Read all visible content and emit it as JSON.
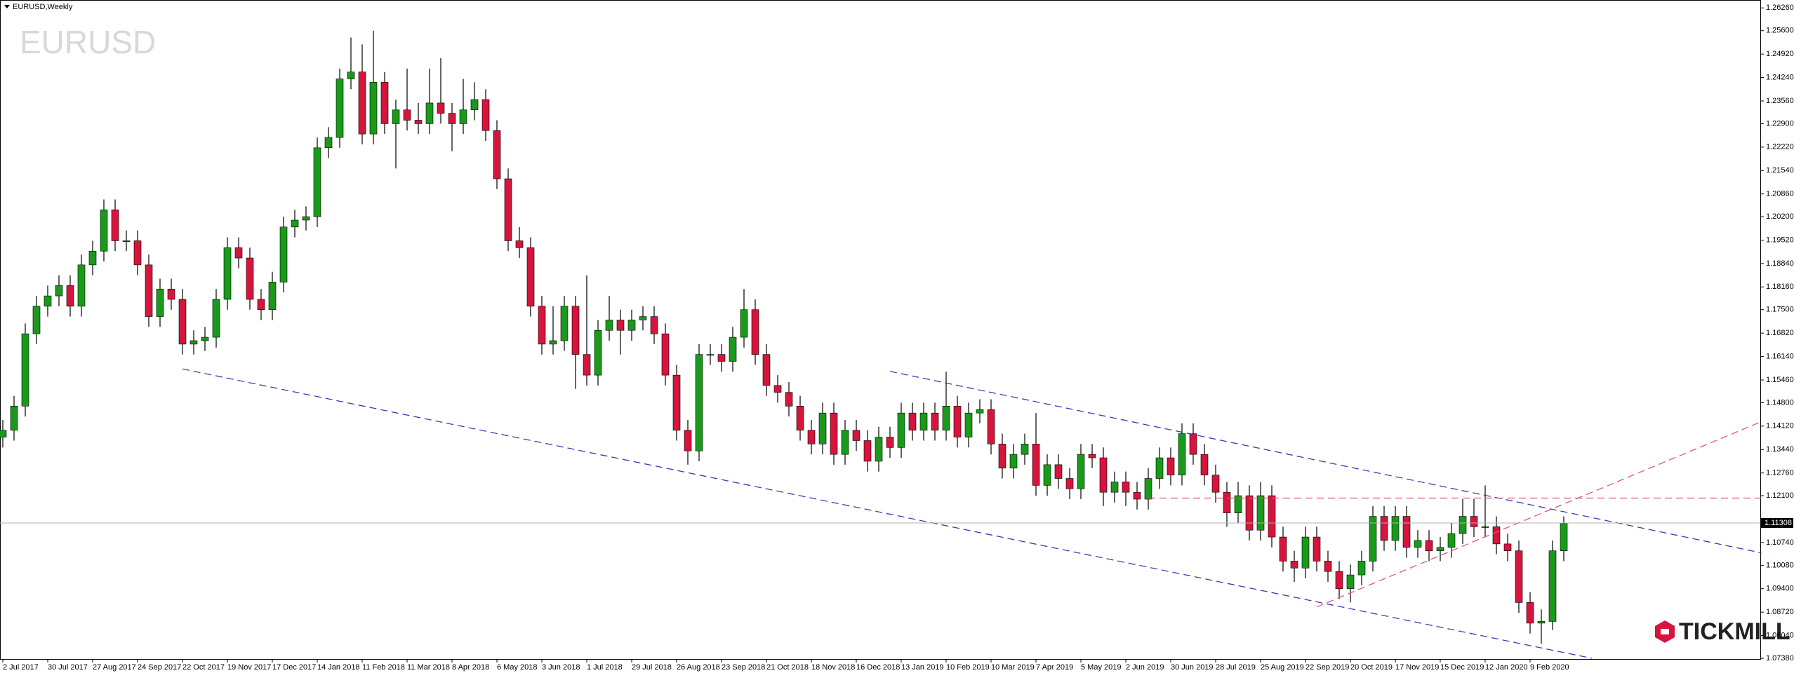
{
  "chart_data": {
    "type": "candlestick",
    "title": "EURUSD",
    "subtitle": "EURUSD,Weekly",
    "logo": "TICKMILL",
    "up_color": "#1a9a1a",
    "down_color": "#d6143c",
    "ylim": [
      1.0736,
      1.2649
    ],
    "yticks": [
      {
        "value": 1.2626,
        "label": "1.26260"
      },
      {
        "value": 1.256,
        "label": "1.25600"
      },
      {
        "value": 1.2492,
        "label": "1.24920"
      },
      {
        "value": 1.2424,
        "label": "1.24240"
      },
      {
        "value": 1.2356,
        "label": "1.23560"
      },
      {
        "value": 1.229,
        "label": "1.22900"
      },
      {
        "value": 1.2222,
        "label": "1.22220"
      },
      {
        "value": 1.2154,
        "label": "1.21540"
      },
      {
        "value": 1.2086,
        "label": "1.20860"
      },
      {
        "value": 1.202,
        "label": "1.20200"
      },
      {
        "value": 1.1952,
        "label": "1.19520"
      },
      {
        "value": 1.1884,
        "label": "1.18840"
      },
      {
        "value": 1.1816,
        "label": "1.18160"
      },
      {
        "value": 1.175,
        "label": "1.17500"
      },
      {
        "value": 1.1682,
        "label": "1.16820"
      },
      {
        "value": 1.1614,
        "label": "1.16140"
      },
      {
        "value": 1.1546,
        "label": "1.15460"
      },
      {
        "value": 1.148,
        "label": "1.14800"
      },
      {
        "value": 1.1412,
        "label": "1.14120"
      },
      {
        "value": 1.1344,
        "label": "1.13440"
      },
      {
        "value": 1.1276,
        "label": "1.12760"
      },
      {
        "value": 1.121,
        "label": "1.12100"
      },
      {
        "value": 1.1074,
        "label": "1.10740"
      },
      {
        "value": 1.1008,
        "label": "1.10080"
      },
      {
        "value": 1.094,
        "label": "1.09400"
      },
      {
        "value": 1.0872,
        "label": "1.08720"
      },
      {
        "value": 1.0804,
        "label": "1.08040"
      },
      {
        "value": 1.0738,
        "label": "1.07380"
      }
    ],
    "last_price": {
      "value": 1.11308,
      "label": "1.11308"
    },
    "xticks": [
      {
        "value": 0,
        "label": "2 Jul 2017"
      },
      {
        "value": 4,
        "label": "30 Jul 2017"
      },
      {
        "value": 8,
        "label": "27 Aug 2017"
      },
      {
        "value": 12,
        "label": "24 Sep 2017"
      },
      {
        "value": 16,
        "label": "22 Oct 2017"
      },
      {
        "value": 20,
        "label": "19 Nov 2017"
      },
      {
        "value": 24,
        "label": "17 Dec 2017"
      },
      {
        "value": 28,
        "label": "14 Jan 2018"
      },
      {
        "value": 32,
        "label": "11 Feb 2018"
      },
      {
        "value": 36,
        "label": "11 Mar 2018"
      },
      {
        "value": 40,
        "label": "8 Apr 2018"
      },
      {
        "value": 44,
        "label": "6 May 2018"
      },
      {
        "value": 48,
        "label": "3 Jun 2018"
      },
      {
        "value": 52,
        "label": "1 Jul 2018"
      },
      {
        "value": 56,
        "label": "29 Jul 2018"
      },
      {
        "value": 60,
        "label": "26 Aug 2018"
      },
      {
        "value": 64,
        "label": "23 Sep 2018"
      },
      {
        "value": 68,
        "label": "21 Oct 2018"
      },
      {
        "value": 72,
        "label": "18 Nov 2018"
      },
      {
        "value": 76,
        "label": "16 Dec 2018"
      },
      {
        "value": 80,
        "label": "13 Jan 2019"
      },
      {
        "value": 84,
        "label": "10 Feb 2019"
      },
      {
        "value": 88,
        "label": "10 Mar 2019"
      },
      {
        "value": 92,
        "label": "7 Apr 2019"
      },
      {
        "value": 96,
        "label": "5 May 2019"
      },
      {
        "value": 100,
        "label": "2 Jun 2019"
      },
      {
        "value": 104,
        "label": "30 Jun 2019"
      },
      {
        "value": 108,
        "label": "28 Jul 2019"
      },
      {
        "value": 112,
        "label": "25 Aug 2019"
      },
      {
        "value": 116,
        "label": "22 Sep 2019"
      },
      {
        "value": 120,
        "label": "20 Oct 2019"
      },
      {
        "value": 124,
        "label": "17 Nov 2019"
      },
      {
        "value": 128,
        "label": "15 Dec 2019"
      },
      {
        "value": 132,
        "label": "12 Jan 2020"
      },
      {
        "value": 136,
        "label": "9 Feb 2020"
      }
    ],
    "open": [
      1.138,
      1.14,
      1.147,
      1.168,
      1.176,
      1.179,
      1.182,
      1.176,
      1.188,
      1.192,
      1.204,
      1.195,
      1.195,
      1.188,
      1.173,
      1.181,
      1.178,
      1.165,
      1.166,
      1.167,
      1.178,
      1.193,
      1.19,
      1.178,
      1.175,
      1.183,
      1.199,
      1.201,
      1.202,
      1.222,
      1.225,
      1.242,
      1.244,
      1.226,
      1.241,
      1.229,
      1.233,
      1.23,
      1.229,
      1.235,
      1.232,
      1.229,
      1.233,
      1.236,
      1.227,
      1.213,
      1.195,
      1.193,
      1.176,
      1.165,
      1.166,
      1.176,
      1.162,
      1.156,
      1.169,
      1.172,
      1.169,
      1.172,
      1.173,
      1.168,
      1.156,
      1.14,
      1.134,
      1.162,
      1.162,
      1.16,
      1.167,
      1.175,
      1.162,
      1.153,
      1.151,
      1.147,
      1.14,
      1.136,
      1.145,
      1.133,
      1.14,
      1.137,
      1.131,
      1.138,
      1.135,
      1.145,
      1.14,
      1.145,
      1.14,
      1.147,
      1.138,
      1.145,
      1.146,
      1.136,
      1.129,
      1.133,
      1.136,
      1.124,
      1.13,
      1.126,
      1.123,
      1.133,
      1.132,
      1.122,
      1.125,
      1.122,
      1.12,
      1.126,
      1.132,
      1.127,
      1.139,
      1.133,
      1.127,
      1.122,
      1.116,
      1.121,
      1.111,
      1.121,
      1.109,
      1.102,
      1.1,
      1.109,
      1.102,
      1.099,
      1.094,
      1.098,
      1.102,
      1.115,
      1.108,
      1.115,
      1.106,
      1.108,
      1.105,
      1.106,
      1.11,
      1.115,
      1.112,
      1.112,
      1.107,
      1.105,
      1.09,
      1.084,
      1.0845,
      1.105
    ],
    "high": [
      1.143,
      1.15,
      1.171,
      1.179,
      1.182,
      1.185,
      1.185,
      1.191,
      1.195,
      1.207,
      1.207,
      1.198,
      1.198,
      1.191,
      1.184,
      1.184,
      1.181,
      1.169,
      1.17,
      1.181,
      1.196,
      1.196,
      1.193,
      1.181,
      1.186,
      1.202,
      1.204,
      1.205,
      1.225,
      1.228,
      1.245,
      1.254,
      1.252,
      1.256,
      1.244,
      1.236,
      1.245,
      1.235,
      1.245,
      1.248,
      1.235,
      1.242,
      1.241,
      1.239,
      1.23,
      1.216,
      1.199,
      1.196,
      1.179,
      1.176,
      1.179,
      1.179,
      1.185,
      1.172,
      1.179,
      1.175,
      1.175,
      1.176,
      1.176,
      1.171,
      1.159,
      1.143,
      1.165,
      1.165,
      1.165,
      1.17,
      1.181,
      1.178,
      1.165,
      1.156,
      1.154,
      1.15,
      1.143,
      1.148,
      1.148,
      1.143,
      1.143,
      1.14,
      1.141,
      1.141,
      1.148,
      1.148,
      1.148,
      1.148,
      1.157,
      1.15,
      1.148,
      1.149,
      1.149,
      1.139,
      1.136,
      1.139,
      1.145,
      1.133,
      1.133,
      1.129,
      1.136,
      1.136,
      1.135,
      1.128,
      1.128,
      1.125,
      1.129,
      1.135,
      1.135,
      1.142,
      1.142,
      1.136,
      1.13,
      1.125,
      1.125,
      1.124,
      1.125,
      1.124,
      1.112,
      1.105,
      1.112,
      1.112,
      1.105,
      1.102,
      1.101,
      1.105,
      1.118,
      1.118,
      1.118,
      1.118,
      1.111,
      1.111,
      1.109,
      1.113,
      1.12,
      1.12,
      1.124,
      1.115,
      1.11,
      1.108,
      1.093,
      1.088,
      1.108,
      1.115
    ],
    "low": [
      1.135,
      1.137,
      1.144,
      1.165,
      1.173,
      1.176,
      1.173,
      1.173,
      1.185,
      1.189,
      1.192,
      1.192,
      1.185,
      1.17,
      1.17,
      1.175,
      1.162,
      1.162,
      1.163,
      1.164,
      1.175,
      1.187,
      1.175,
      1.172,
      1.172,
      1.18,
      1.196,
      1.198,
      1.199,
      1.219,
      1.222,
      1.239,
      1.223,
      1.223,
      1.226,
      1.216,
      1.227,
      1.226,
      1.226,
      1.229,
      1.221,
      1.226,
      1.23,
      1.224,
      1.21,
      1.192,
      1.19,
      1.173,
      1.162,
      1.162,
      1.163,
      1.152,
      1.153,
      1.153,
      1.166,
      1.162,
      1.166,
      1.169,
      1.165,
      1.153,
      1.137,
      1.13,
      1.131,
      1.159,
      1.157,
      1.157,
      1.164,
      1.159,
      1.15,
      1.148,
      1.144,
      1.137,
      1.133,
      1.133,
      1.13,
      1.13,
      1.134,
      1.128,
      1.128,
      1.132,
      1.132,
      1.137,
      1.137,
      1.137,
      1.137,
      1.135,
      1.135,
      1.142,
      1.133,
      1.126,
      1.126,
      1.13,
      1.121,
      1.121,
      1.123,
      1.12,
      1.12,
      1.129,
      1.118,
      1.119,
      1.118,
      1.117,
      1.117,
      1.123,
      1.124,
      1.124,
      1.13,
      1.124,
      1.119,
      1.112,
      1.113,
      1.108,
      1.108,
      1.106,
      1.099,
      1.096,
      1.097,
      1.099,
      1.096,
      1.091,
      1.09,
      1.095,
      1.099,
      1.105,
      1.105,
      1.103,
      1.103,
      1.102,
      1.102,
      1.103,
      1.107,
      1.109,
      1.109,
      1.104,
      1.102,
      1.087,
      1.081,
      1.078,
      1.082,
      1.102
    ],
    "close": [
      1.14,
      1.147,
      1.168,
      1.176,
      1.179,
      1.182,
      1.176,
      1.188,
      1.192,
      1.204,
      1.195,
      1.195,
      1.188,
      1.173,
      1.181,
      1.178,
      1.165,
      1.166,
      1.167,
      1.178,
      1.193,
      1.19,
      1.178,
      1.175,
      1.183,
      1.199,
      1.201,
      1.202,
      1.222,
      1.225,
      1.242,
      1.244,
      1.226,
      1.241,
      1.229,
      1.233,
      1.23,
      1.229,
      1.235,
      1.232,
      1.229,
      1.233,
      1.236,
      1.227,
      1.213,
      1.195,
      1.193,
      1.176,
      1.165,
      1.166,
      1.176,
      1.162,
      1.156,
      1.169,
      1.172,
      1.169,
      1.172,
      1.173,
      1.168,
      1.156,
      1.14,
      1.134,
      1.162,
      1.162,
      1.16,
      1.167,
      1.175,
      1.162,
      1.153,
      1.151,
      1.147,
      1.14,
      1.136,
      1.145,
      1.133,
      1.14,
      1.137,
      1.131,
      1.138,
      1.135,
      1.145,
      1.14,
      1.145,
      1.14,
      1.147,
      1.138,
      1.145,
      1.146,
      1.136,
      1.129,
      1.133,
      1.136,
      1.124,
      1.13,
      1.126,
      1.123,
      1.133,
      1.132,
      1.122,
      1.125,
      1.122,
      1.12,
      1.126,
      1.132,
      1.127,
      1.139,
      1.133,
      1.127,
      1.122,
      1.116,
      1.121,
      1.111,
      1.121,
      1.109,
      1.102,
      1.1,
      1.109,
      1.102,
      1.099,
      1.094,
      1.098,
      1.102,
      1.115,
      1.108,
      1.115,
      1.106,
      1.108,
      1.105,
      1.106,
      1.11,
      1.115,
      1.112,
      1.112,
      1.107,
      1.105,
      1.09,
      1.084,
      1.0845,
      1.105,
      1.113
    ],
    "trendlines": [
      {
        "x": [
          16,
          141.5
        ],
        "y": [
          1.1578,
          1.0738
        ],
        "color": "#3a3ab0"
      },
      {
        "x": [
          79,
          156.6
        ],
        "y": [
          1.1571,
          1.1044
        ],
        "color": "#3a3ab0"
      },
      {
        "x": [
          102,
          156.6
        ],
        "y": [
          1.1203,
          1.1203
        ],
        "color": "#e0557a"
      },
      {
        "x": [
          117,
          156.6
        ],
        "y": [
          1.0887,
          1.1425
        ],
        "color": "#e0557a"
      }
    ]
  }
}
